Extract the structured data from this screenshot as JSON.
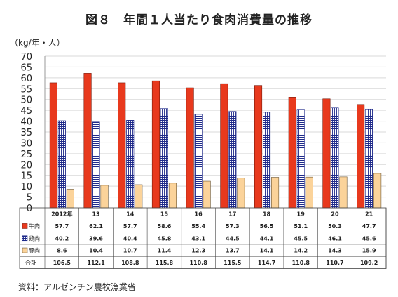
{
  "title": "図８　年間１人当たり食肉消費量の推移",
  "unit_label": "（kg/年・人）",
  "source": "資料：アルゼンチン農牧漁業省",
  "colors": {
    "beef": "#e8391d",
    "chicken": "#1f2a8a",
    "pork": "#fbd39a"
  },
  "chart_data": {
    "type": "bar",
    "categories": [
      "2012年",
      "13",
      "14",
      "15",
      "16",
      "17",
      "18",
      "19",
      "20",
      "21"
    ],
    "series": [
      {
        "name": "牛肉",
        "values": [
          57.7,
          62.1,
          57.7,
          58.6,
          55.4,
          57.3,
          56.5,
          51.1,
          50.3,
          47.7
        ]
      },
      {
        "name": "鶏肉",
        "values": [
          40.2,
          39.6,
          40.4,
          45.8,
          43.1,
          44.5,
          44.1,
          45.5,
          46.1,
          45.6
        ]
      },
      {
        "name": "豚肉",
        "values": [
          8.6,
          10.4,
          10.7,
          11.4,
          12.3,
          13.7,
          14.1,
          14.2,
          14.3,
          15.9
        ]
      }
    ],
    "totals": {
      "name": "合計",
      "values": [
        106.5,
        112.1,
        108.8,
        115.8,
        110.8,
        115.5,
        114.7,
        110.8,
        110.7,
        109.2
      ]
    },
    "ylim": [
      0,
      70
    ],
    "yticks": [
      0,
      5,
      10,
      15,
      20,
      25,
      30,
      35,
      40,
      45,
      50,
      55,
      60,
      65,
      70
    ],
    "grid": true,
    "legend": "table-left"
  }
}
